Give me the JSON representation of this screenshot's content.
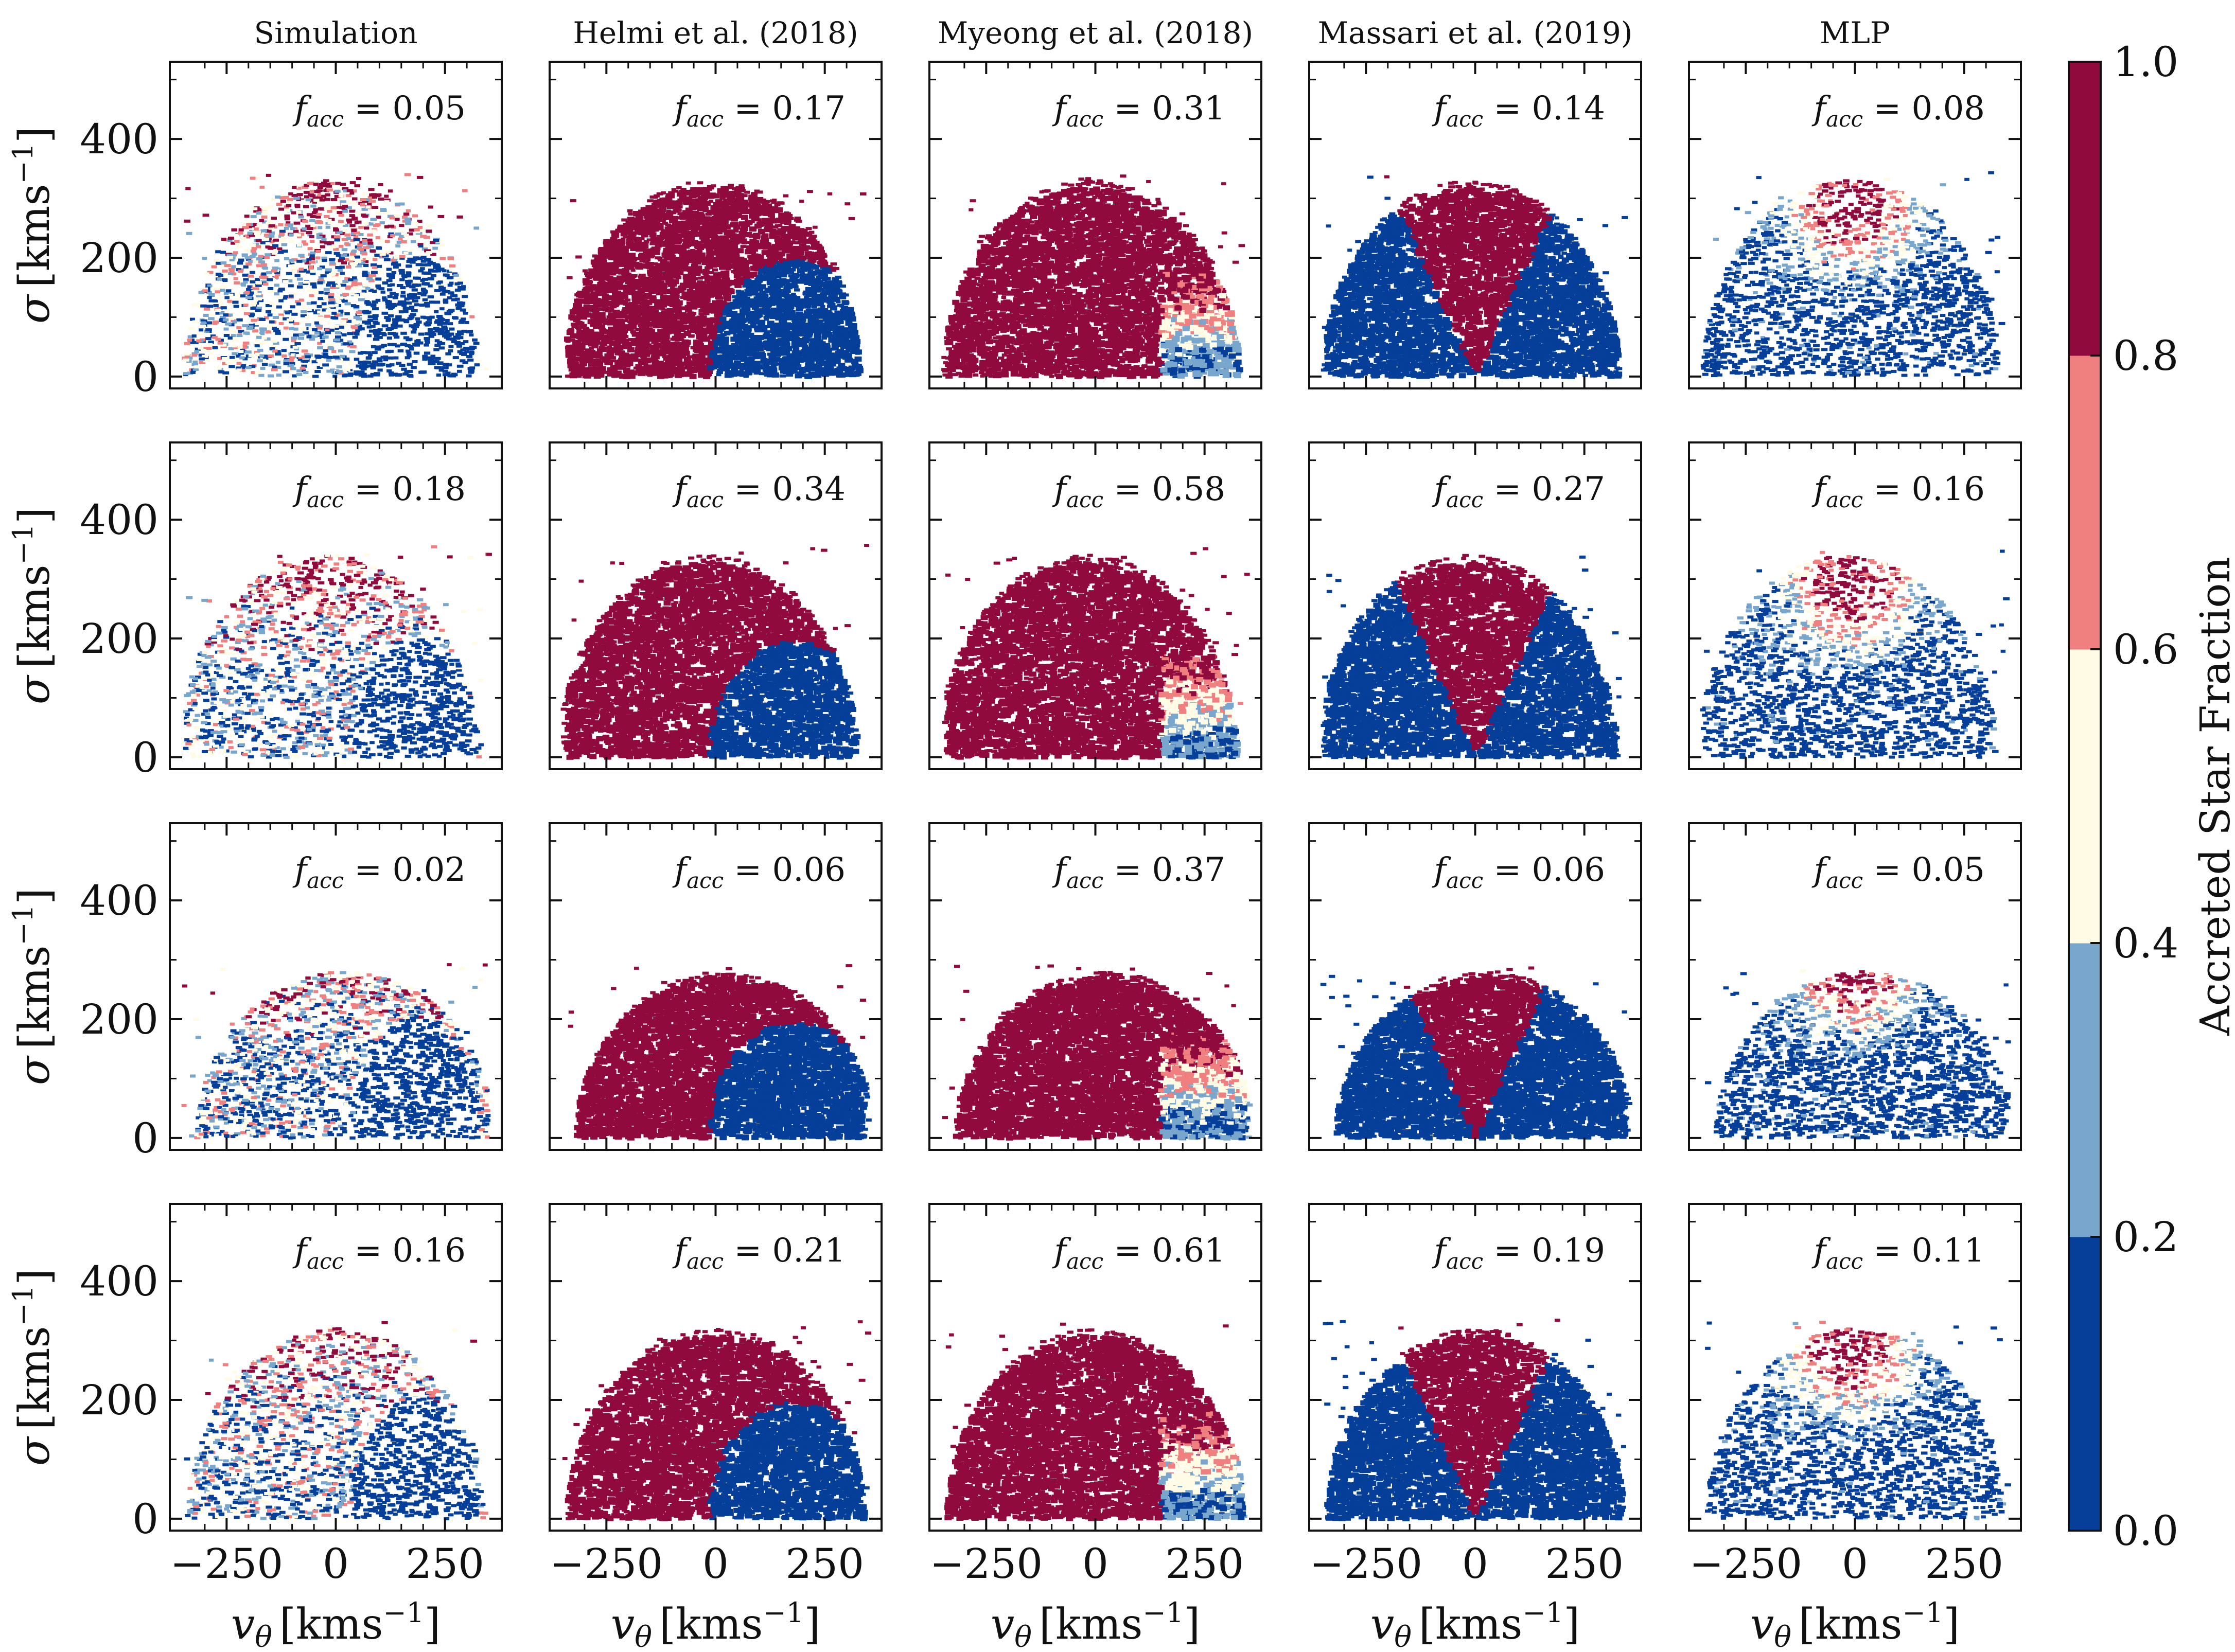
{
  "figure": {
    "colorbar": {
      "label": "Accreted Star Fraction",
      "ticks": [
        "0.0",
        "0.2",
        "0.4",
        "0.6",
        "0.8",
        "1.0"
      ],
      "colors": [
        "#053f99",
        "#78a6cc",
        "#fffbe5",
        "#f08080",
        "#910a3d"
      ]
    },
    "colors": {
      "in_situ": "#053f99",
      "accreted": "#910a3d",
      "mid_low": "#78a6cc",
      "mid": "#fffbe5",
      "mid_high": "#f08080",
      "axis": "#111111"
    }
  },
  "chart_data": {
    "type": "scatter",
    "kind": "binned 2D histogram grid (4 rows x 5 columns)",
    "columns": [
      "Simulation",
      "Helmi et al. (2018)",
      "Myeong et al. (2018)",
      "Massari et al. (2019)",
      "MLP"
    ],
    "facc_prefix": "f",
    "facc_sub": "acc",
    "facc_eq": " = ",
    "facc": [
      [
        "0.05",
        "0.17",
        "0.31",
        "0.14",
        "0.08"
      ],
      [
        "0.18",
        "0.34",
        "0.58",
        "0.27",
        "0.16"
      ],
      [
        "0.02",
        "0.06",
        "0.37",
        "0.06",
        "0.05"
      ],
      [
        "0.16",
        "0.21",
        "0.61",
        "0.19",
        "0.11"
      ]
    ],
    "xlabel": {
      "symbol": "v",
      "sub": "θ",
      "unit": "[kms",
      "exp": "−1",
      "close": "]"
    },
    "ylabel": {
      "symbol": "σ",
      "unit": "[kms",
      "exp": "−1",
      "close": "]"
    },
    "xlim": [
      -380,
      380
    ],
    "ylim": [
      -20,
      530
    ],
    "xticks": [
      {
        "value": -250,
        "label": "−250"
      },
      {
        "value": 0,
        "label": "0"
      },
      {
        "value": 250,
        "label": "250"
      }
    ],
    "yticks": [
      {
        "value": 0,
        "label": "0"
      },
      {
        "value": 200,
        "label": "200"
      },
      {
        "value": 400,
        "label": "400"
      }
    ],
    "row_extent": [
      {
        "center": -10,
        "sigma_max": 330
      },
      {
        "center": -20,
        "sigma_max": 340
      },
      {
        "center": 20,
        "sigma_max": 280
      },
      {
        "center": 0,
        "sigma_max": 320
      }
    ],
    "selections": {
      "Helmi et al. (2018)": {
        "rule": "arc",
        "arc_center_x": 180,
        "arc_radius": 195
      },
      "Myeong et al. (2018)": {
        "rule": "vertical_cut",
        "cut_x": 150
      },
      "Massari et al. (2019)": {
        "rule": "wedge",
        "apex_x": 0,
        "half_angle_deg": 32
      }
    }
  }
}
